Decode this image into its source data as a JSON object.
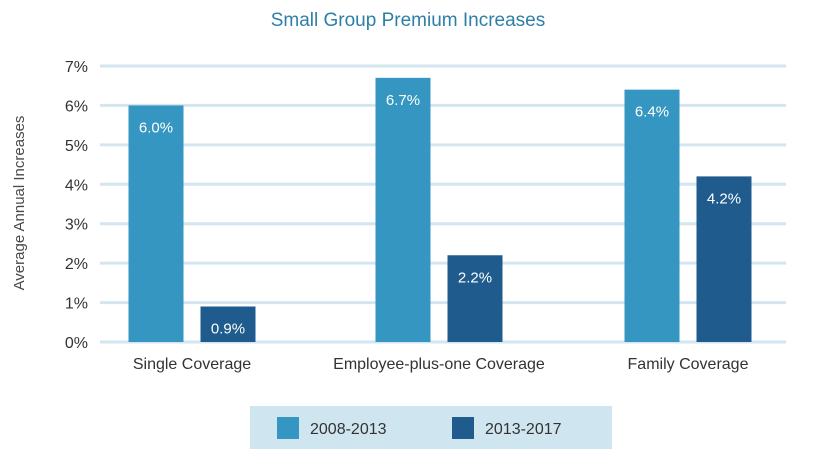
{
  "chart_data": {
    "type": "bar",
    "title": "Small Group Premium Increases",
    "xlabel": "",
    "ylabel": "Average Annual Increases",
    "ylim": [
      0,
      7
    ],
    "yticks": [
      "0%",
      "1%",
      "2%",
      "3%",
      "4%",
      "5%",
      "6%",
      "7%"
    ],
    "categories": [
      "Single Coverage",
      "Employee-plus-one Coverage",
      "Family Coverage"
    ],
    "series": [
      {
        "name": "2008-2013",
        "values": [
          6.0,
          6.7,
          6.4
        ],
        "labels": [
          "6.0%",
          "6.7%",
          "6.4%"
        ],
        "color": "#3596c2"
      },
      {
        "name": "2013-2017",
        "values": [
          0.9,
          2.2,
          4.2
        ],
        "labels": [
          "0.9%",
          "2.2%",
          "4.2%"
        ],
        "color": "#1f5b8c"
      }
    ],
    "grid": true,
    "legend_position": "bottom",
    "colors": {
      "gridline": "#d3e6ef",
      "legend_background": "#cfe5ef",
      "title": "#2e7fa8"
    }
  }
}
